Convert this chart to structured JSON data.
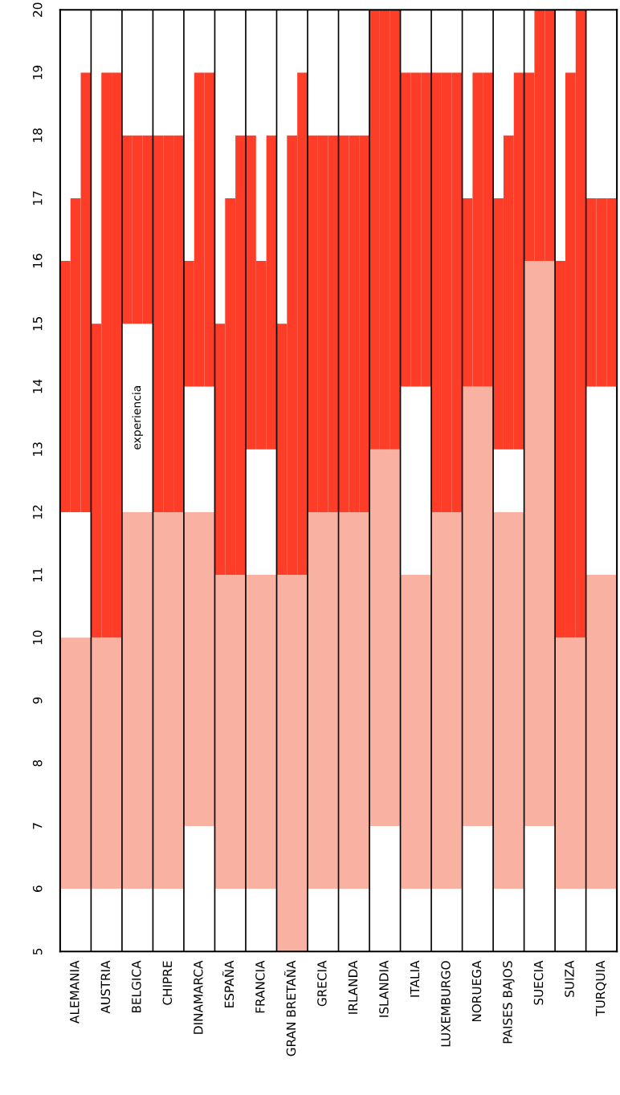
{
  "chart_data": {
    "type": "bar",
    "categories": [
      "ALEMANIA",
      "AUSTRIA",
      "BELGICA",
      "CHIPRE",
      "DINAMARCA",
      "ESPAÑA",
      "FRANCIA",
      "GRAN BRETAÑA",
      "GRECIA",
      "IRLANDA",
      "ISLANDIA",
      "ITALIA",
      "LUXEMBURGO",
      "NORUEGA",
      "PAISES BAJOS",
      "SUECIA",
      "SUIZA",
      "TURQUIA"
    ],
    "series": [
      {
        "color": "#f9b2a2",
        "base": [
          6,
          6,
          6,
          6,
          7,
          6,
          6,
          5,
          6,
          6,
          7,
          6,
          6,
          7,
          6,
          7,
          6,
          6
        ],
        "values": [
          4,
          4,
          6,
          6,
          5,
          5,
          5,
          6,
          6,
          6,
          6,
          5,
          6,
          7,
          6,
          9,
          4,
          5
        ]
      },
      {
        "color": "#fd3d27",
        "base": [
          12,
          10,
          15,
          12,
          14,
          11,
          13,
          11,
          12,
          12,
          13,
          14,
          12,
          14,
          13,
          16,
          10,
          14
        ],
        "values": [
          4,
          5,
          3,
          6,
          2,
          4,
          5,
          4,
          6,
          6,
          7,
          5,
          7,
          3,
          4,
          3,
          6,
          3
        ]
      },
      {
        "color": "#fd3d27",
        "base": [
          12,
          10,
          15,
          12,
          14,
          11,
          13,
          11,
          12,
          12,
          13,
          14,
          12,
          14,
          13,
          16,
          10,
          14
        ],
        "values": [
          5,
          9,
          3,
          6,
          5,
          6,
          3,
          7,
          6,
          6,
          7,
          5,
          7,
          5,
          5,
          4,
          9,
          3
        ]
      },
      {
        "color": "#fd3d27",
        "base": [
          12,
          10,
          15,
          12,
          14,
          11,
          13,
          11,
          12,
          12,
          13,
          14,
          12,
          14,
          13,
          16,
          10,
          14
        ],
        "values": [
          7,
          9,
          3,
          6,
          5,
          7,
          5,
          8,
          6,
          6,
          7,
          5,
          7,
          5,
          6,
          4,
          10,
          3
        ]
      }
    ],
    "ylim": [
      5,
      20
    ],
    "yticks": [
      5,
      6,
      7,
      8,
      9,
      10,
      11,
      12,
      13,
      14,
      15,
      16,
      17,
      18,
      19,
      20
    ],
    "grid": "x",
    "annotations": [
      "experiencia"
    ]
  }
}
